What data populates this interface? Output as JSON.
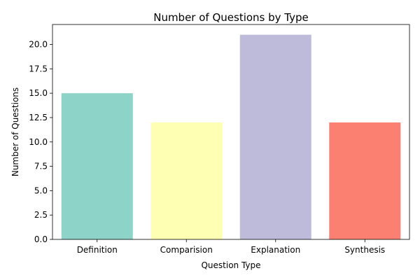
{
  "chart_data": {
    "type": "bar",
    "title": "Number of Questions by Type",
    "xlabel": "Question Type",
    "ylabel": "Number of Questions",
    "categories": [
      "Definition",
      "Comparision",
      "Explanation",
      "Synthesis"
    ],
    "values": [
      15,
      12,
      21,
      12
    ],
    "colors": [
      "#8dd3c7",
      "#ffffb3",
      "#bebada",
      "#fb8072"
    ],
    "ylim": [
      0,
      22.05
    ],
    "yticks": [
      0.0,
      2.5,
      5.0,
      7.5,
      10.0,
      12.5,
      15.0,
      17.5,
      20.0
    ],
    "ytick_labels": [
      "0.0",
      "2.5",
      "5.0",
      "7.5",
      "10.0",
      "12.5",
      "15.0",
      "17.5",
      "20.0"
    ],
    "grid": false,
    "legend": "none"
  }
}
